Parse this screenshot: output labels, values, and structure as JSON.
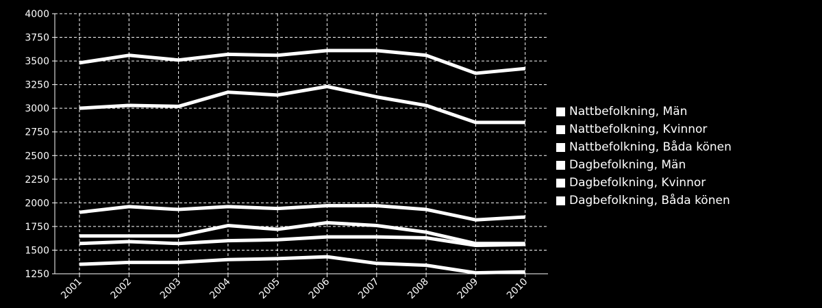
{
  "chart_data": {
    "type": "line",
    "title": "",
    "xlabel": "",
    "ylabel": "",
    "x": [
      "2001",
      "2002",
      "2003",
      "2004",
      "2005",
      "2006",
      "2007",
      "2008",
      "2009",
      "2010"
    ],
    "ylim": [
      1250,
      4000
    ],
    "yticks": [
      1250,
      1500,
      1750,
      2000,
      2250,
      2500,
      2750,
      3000,
      3250,
      3500,
      3750,
      4000
    ],
    "grid": true,
    "legend_position": "right",
    "line_color": "#ffffff",
    "background": "#000000",
    "series": [
      {
        "name": "Nattbefolkning, Män",
        "values": [
          1350,
          1370,
          1370,
          1400,
          1410,
          1430,
          1360,
          1340,
          1260,
          1270
        ]
      },
      {
        "name": "Nattbefolkning, Kvinnor",
        "values": [
          1650,
          1650,
          1650,
          1760,
          1720,
          1790,
          1760,
          1690,
          1570,
          1570
        ]
      },
      {
        "name": "Nattbefolkning, Båda könen",
        "values": [
          3000,
          3030,
          3020,
          3170,
          3140,
          3230,
          3120,
          3030,
          2850,
          2850
        ]
      },
      {
        "name": "Dagbefolkning, Män",
        "values": [
          1570,
          1590,
          1570,
          1600,
          1610,
          1640,
          1640,
          1630,
          1550,
          1560
        ]
      },
      {
        "name": "Dagbefolkning, Kvinnor",
        "values": [
          1900,
          1960,
          1930,
          1960,
          1940,
          1970,
          1970,
          1930,
          1820,
          1850
        ]
      },
      {
        "name": "Dagbefolkning, Båda könen",
        "values": [
          3480,
          3560,
          3510,
          3570,
          3560,
          3610,
          3610,
          3560,
          3370,
          3420
        ]
      }
    ]
  }
}
